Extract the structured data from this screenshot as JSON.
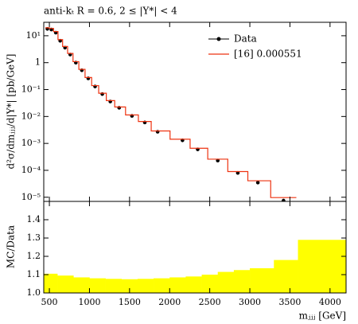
{
  "chart_data": [
    {
      "type": "line",
      "title": "anti-kₜ R = 0.6, 2 ≤ |Y*| < 4",
      "ylabel": "d²σ/dmⱼⱼⱼ/d|Y*| [pb/GeV]",
      "x": [
        475,
        525,
        580,
        635,
        695,
        760,
        830,
        905,
        985,
        1070,
        1160,
        1260,
        1370,
        1530,
        1690,
        1850,
        2160,
        2350,
        2600,
        2850,
        3100,
        3420
      ],
      "series": [
        {
          "name": "Data",
          "color": "#000000",
          "draw": "points",
          "values": [
            18,
            17,
            13,
            6.5,
            3.6,
            2.0,
            1.0,
            0.52,
            0.26,
            0.13,
            0.068,
            0.036,
            0.021,
            0.0105,
            0.006,
            0.0027,
            0.0013,
            0.0006,
            0.00023,
            8e-05,
            3.5e-05,
            7.5e-06
          ]
        },
        {
          "name": "[16] 0.000551",
          "color": "#ee3311",
          "draw": "step",
          "values": [
            19.8,
            18.7,
            14.3,
            7.2,
            4.0,
            2.2,
            1.09,
            0.565,
            0.28,
            0.14,
            0.073,
            0.039,
            0.0226,
            0.0114,
            0.0065,
            0.0029,
            0.00143,
            0.00066,
            0.00026,
            9e-05,
            4.1e-05,
            9.7e-06
          ]
        }
      ],
      "xlim": [
        430,
        4200
      ],
      "ylim": [
        7e-06,
        31.6
      ],
      "ylog": true,
      "yticks": [
        {
          "value": 1e-05,
          "label": "10⁻⁵"
        },
        {
          "value": 0.0001,
          "label": "10⁻⁴"
        },
        {
          "value": 0.001,
          "label": "10⁻³"
        },
        {
          "value": 0.01,
          "label": "10⁻²"
        },
        {
          "value": 0.1,
          "label": "10⁻¹"
        },
        1,
        {
          "value": 10,
          "label": "10¹"
        }
      ],
      "legend": "upper right"
    },
    {
      "type": "histogram",
      "ylabel": "MC/Data",
      "xlabel": "mⱼⱼⱼ [GeV]",
      "color": "#ffff00",
      "bins": [
        430,
        600,
        800,
        1000,
        1200,
        1400,
        1600,
        1800,
        2000,
        2200,
        2400,
        2600,
        2800,
        3000,
        3300,
        3600,
        4200
      ],
      "values": [
        1.105,
        1.095,
        1.085,
        1.08,
        1.077,
        1.075,
        1.077,
        1.08,
        1.085,
        1.09,
        1.1,
        1.115,
        1.125,
        1.135,
        1.18,
        1.29
      ],
      "xlim": [
        430,
        4200
      ],
      "ylim": [
        1.0,
        1.5
      ],
      "xticks": [
        500,
        1000,
        1500,
        2000,
        2500,
        3000,
        3500,
        4000
      ],
      "yticks": [
        {
          "value": 1.0,
          "label": "1.0"
        },
        1.1,
        1.2,
        1.3,
        1.4
      ]
    }
  ]
}
